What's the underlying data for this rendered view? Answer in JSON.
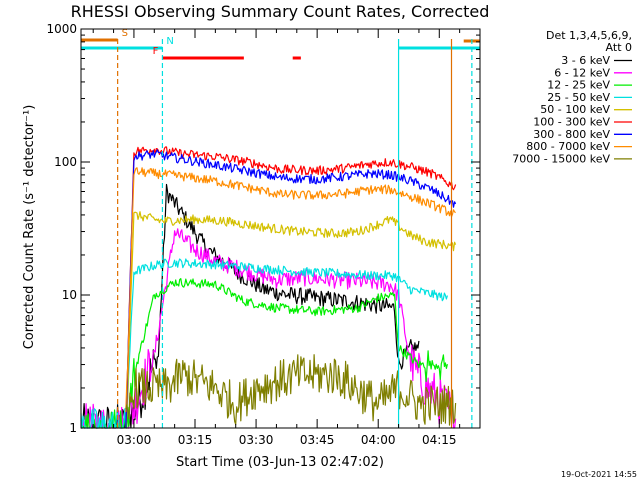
{
  "chart_data": {
    "type": "line",
    "title": "RHESSI Observing Summary Count Rates, Corrected",
    "xlabel": "Start Time (03-Jun-13 02:47:02)",
    "ylabel": "Corrected Count Rate (s⁻¹ detector⁻¹)",
    "y_scale": "log",
    "ylim": [
      1,
      1000
    ],
    "xlim": [
      "02:47",
      "04:25"
    ],
    "x_ticks": [
      "03:00",
      "03:15",
      "03:30",
      "03:45",
      "04:00",
      "04:15"
    ],
    "y_ticks": [
      "1",
      "10",
      "100",
      "1000"
    ],
    "legend_header": [
      "Det 1,3,4,5,6,9,",
      "Att 0"
    ],
    "legend_position": "right",
    "timestamp": "19-Oct-2021 14:55",
    "flags": [
      {
        "label": "S",
        "color": "#e07000",
        "start": "02:47",
        "end": "02:56"
      },
      {
        "label": "N",
        "color": "#00e0e0",
        "start": "02:47",
        "end": "03:07"
      },
      {
        "label": "F",
        "color": "#ff0000",
        "start": "03:07",
        "end": "03:27"
      },
      {
        "label": "",
        "color": "#ff0000",
        "start": "03:39",
        "end": "03:41"
      },
      {
        "label": "",
        "color": "#00e0e0",
        "start": "04:05",
        "end": "04:25"
      },
      {
        "label": "",
        "color": "#e07000",
        "start": "04:21",
        "end": "04:25"
      }
    ],
    "vertical_markers": [
      {
        "time": "02:56",
        "color": "#e07000",
        "dash": true
      },
      {
        "time": "03:07",
        "color": "#00e0e0",
        "dash": true
      },
      {
        "time": "04:05",
        "color": "#00e0e0",
        "dash": false
      },
      {
        "time": "04:18",
        "color": "#e07000",
        "dash": false
      },
      {
        "time": "04:23",
        "color": "#00e0e0",
        "dash": true
      }
    ],
    "series": [
      {
        "name": "3 - 6 keV",
        "color": "#000000",
        "times": [
          "02:47",
          "02:58",
          "03:06",
          "03:08",
          "03:12",
          "03:18",
          "03:25",
          "03:32",
          "03:38",
          "03:45",
          "03:52",
          "03:58",
          "04:04",
          "04:05",
          "04:08",
          "04:10"
        ],
        "values": [
          1,
          1,
          3.5,
          60,
          40,
          22,
          15,
          11,
          10,
          9.5,
          9,
          8.5,
          8,
          3,
          4,
          4
        ]
      },
      {
        "name": "6 - 12 keV",
        "color": "#ff00ff",
        "times": [
          "02:47",
          "02:58",
          "03:05",
          "03:10",
          "03:15",
          "03:20",
          "03:28",
          "03:35",
          "03:42",
          "03:50",
          "03:58",
          "04:03",
          "04:05",
          "04:08",
          "04:12",
          "04:16",
          "04:19"
        ],
        "values": [
          1,
          1,
          3.5,
          30,
          22,
          18,
          15,
          13,
          13.5,
          13,
          12.5,
          12,
          10,
          3,
          2,
          1.5,
          1.2
        ]
      },
      {
        "name": "12 - 25 keV",
        "color": "#00ee00",
        "times": [
          "02:47",
          "02:58",
          "03:00",
          "03:05",
          "03:10",
          "03:20",
          "03:27",
          "03:35",
          "03:45",
          "03:55",
          "04:00",
          "04:04",
          "04:05",
          "04:10",
          "04:14",
          "04:17"
        ],
        "values": [
          1,
          1,
          2.5,
          10,
          12.5,
          12,
          9,
          8,
          7.5,
          8,
          9.5,
          10,
          4,
          3,
          3,
          3
        ]
      },
      {
        "name": "25 - 50 keV",
        "color": "#00e0e0",
        "times": [
          "02:47",
          "02:58",
          "03:00",
          "03:06",
          "03:10",
          "03:20",
          "03:30",
          "03:40",
          "03:50",
          "03:58",
          "04:04",
          "04:08",
          "04:14",
          "04:17"
        ],
        "values": [
          1,
          1,
          15,
          17,
          17.5,
          17,
          16,
          15,
          14.5,
          14,
          14,
          11,
          10,
          9.5
        ]
      },
      {
        "name": "50 - 100 keV",
        "color": "#d4c000",
        "times": [
          "02:58",
          "03:00",
          "03:07",
          "03:15",
          "03:22",
          "03:30",
          "03:40",
          "03:50",
          "03:55",
          "04:00",
          "04:03",
          "04:08",
          "04:12",
          "04:16",
          "04:19"
        ],
        "values": [
          1,
          40,
          36,
          37,
          36,
          33,
          30,
          29,
          30,
          34,
          37,
          28,
          25,
          24,
          23
        ]
      },
      {
        "name": "100 - 300 keV",
        "color": "#ff0000",
        "times": [
          "02:58",
          "03:00",
          "03:05",
          "03:12",
          "03:20",
          "03:28",
          "03:36",
          "03:45",
          "03:52",
          "03:58",
          "04:03",
          "04:08",
          "04:13",
          "04:19"
        ],
        "values": [
          1,
          120,
          125,
          115,
          110,
          100,
          88,
          86,
          90,
          97,
          100,
          92,
          82,
          65
        ]
      },
      {
        "name": "300 - 800 keV",
        "color": "#0000ff",
        "times": [
          "02:58",
          "03:00",
          "03:05",
          "03:12",
          "03:20",
          "03:28",
          "03:36",
          "03:45",
          "03:52",
          "03:58",
          "04:03",
          "04:08",
          "04:13",
          "04:19"
        ],
        "values": [
          1,
          110,
          115,
          105,
          95,
          85,
          76,
          74,
          78,
          82,
          80,
          72,
          62,
          48
        ]
      },
      {
        "name": "800 - 7000 keV",
        "color": "#ff8c00",
        "times": [
          "02:58",
          "03:00",
          "03:05",
          "03:12",
          "03:20",
          "03:28",
          "03:36",
          "03:45",
          "03:52",
          "03:58",
          "04:03",
          "04:08",
          "04:13",
          "04:19"
        ],
        "values": [
          1,
          85,
          82,
          78,
          72,
          64,
          57,
          56,
          58,
          62,
          62,
          55,
          48,
          40
        ]
      },
      {
        "name": "7000 - 15000 keV",
        "color": "#7f7f00",
        "times": [
          "02:58",
          "03:00",
          "03:08",
          "03:12",
          "03:20",
          "03:25",
          "03:30",
          "03:40",
          "03:50",
          "04:00",
          "04:05",
          "04:10",
          "04:19"
        ],
        "values": [
          1,
          2,
          2,
          2.5,
          2,
          1.5,
          2,
          2.5,
          2.5,
          1.5,
          2,
          1.5,
          1.5
        ]
      }
    ]
  }
}
